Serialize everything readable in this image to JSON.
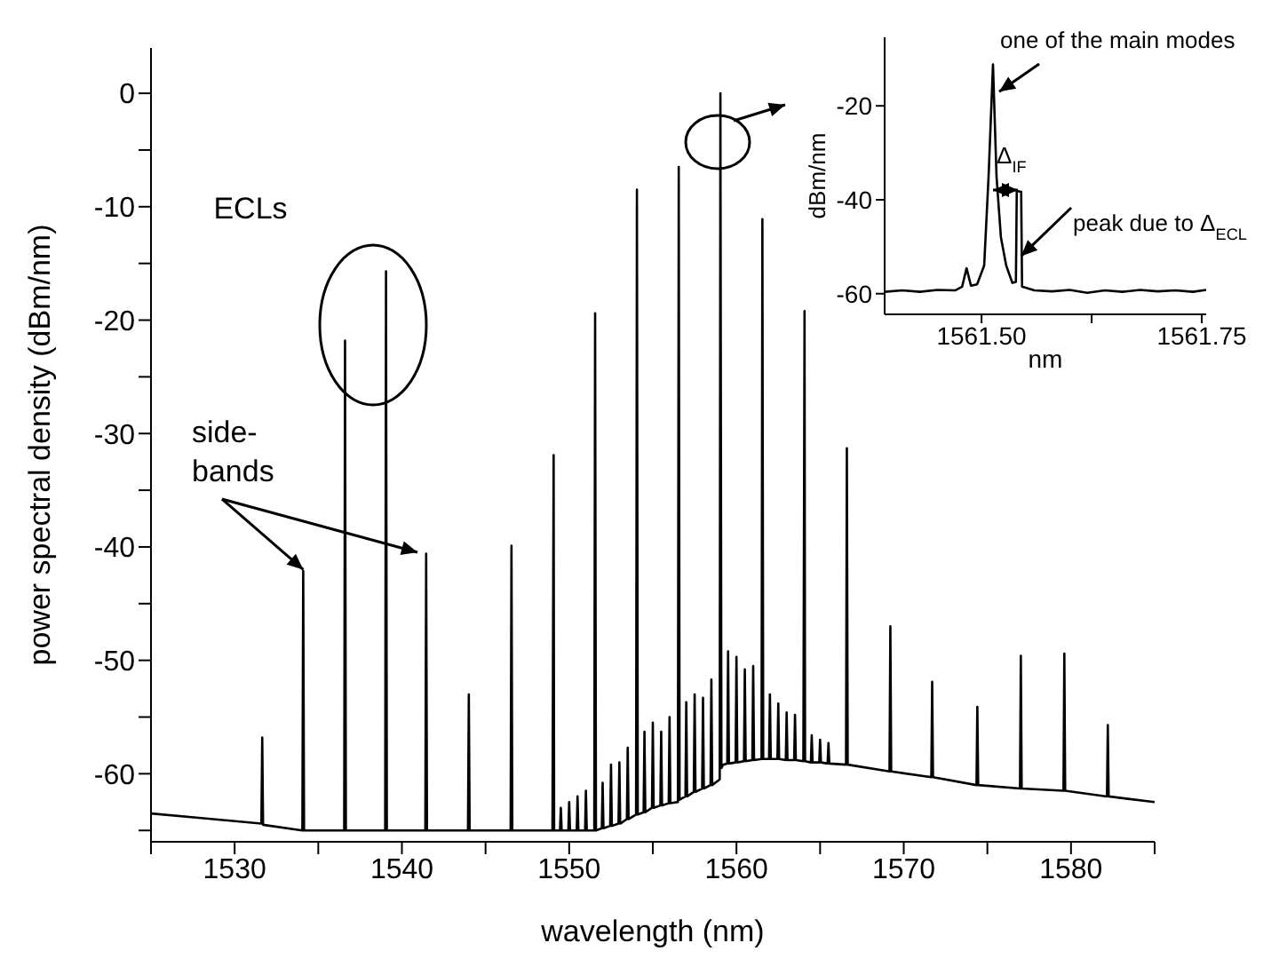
{
  "chart_data": [
    {
      "type": "line",
      "xlabel": "wavelength (nm)",
      "ylabel": "power spectral density (dBm/nm)",
      "xlim": [
        1525,
        1585
      ],
      "xticks": [
        {
          "value": 1525,
          "label": null
        },
        1530,
        {
          "value": 1535,
          "label": null
        },
        1540,
        {
          "value": 1545,
          "label": null
        },
        1550,
        {
          "value": 1555,
          "label": null
        },
        1560,
        {
          "value": 1565,
          "label": null
        },
        1570,
        {
          "value": 1575,
          "label": null
        },
        1580,
        {
          "value": 1585,
          "label": null
        }
      ],
      "ylim": [
        -66,
        4
      ],
      "yticks": [
        {
          "value": -65,
          "label": null
        },
        -60,
        {
          "value": -55,
          "label": null
        },
        -50,
        {
          "value": -45,
          "label": null
        },
        -40,
        {
          "value": -35,
          "label": null
        },
        -30,
        {
          "value": -25,
          "label": null
        },
        -20,
        {
          "value": -15,
          "label": null
        },
        -10,
        {
          "value": -5,
          "label": null
        },
        0
      ],
      "annotations": [
        "ECLs",
        {
          "text": "side-\nbands",
          "x": 1534.1,
          "y": -42
        }
      ],
      "series": [
        {
          "color": "#000000",
          "x": [
            1525,
            1528,
            1531.6,
            1531.65,
            1531.7,
            1534.05,
            1534.1,
            1534.15,
            1536.55,
            1536.6,
            1536.65,
            1539,
            1539.05,
            1539.1,
            1541.4,
            1541.45,
            1541.5,
            1543.95,
            1544,
            1544.05,
            1546.5,
            1546.55,
            1546.6,
            1549.0,
            1549.07,
            1549.1,
            1549.45,
            1549.5,
            1549.55,
            1549.95,
            1550,
            1550.05,
            1550.45,
            1550.5,
            1550.55,
            1550.95,
            1551,
            1551.05,
            1551.5,
            1551.55,
            1551.6,
            1551.95,
            1552,
            1552.05,
            1552.45,
            1552.5,
            1552.55,
            1552.95,
            1553,
            1553.05,
            1553.45,
            1553.5,
            1553.55,
            1554,
            1554.05,
            1554.1,
            1554.45,
            1554.5,
            1554.55,
            1554.95,
            1555,
            1555.05,
            1555.45,
            1555.5,
            1555.55,
            1555.95,
            1556,
            1556.05,
            1556.5,
            1556.55,
            1556.6,
            1556.95,
            1557,
            1557.05,
            1557.45,
            1557.5,
            1557.55,
            1557.95,
            1558,
            1558.05,
            1558.45,
            1558.5,
            1558.55,
            1559,
            1559.04,
            1559.1,
            1559.2,
            1559.45,
            1559.5,
            1559.55,
            1559.95,
            1560,
            1560.05,
            1560.45,
            1560.5,
            1560.55,
            1560.95,
            1561,
            1561.05,
            1561.5,
            1561.55,
            1561.6,
            1561.95,
            1562,
            1562.05,
            1562.45,
            1562.5,
            1562.55,
            1562.95,
            1563,
            1563.05,
            1563.45,
            1563.5,
            1563.55,
            1564,
            1564.07,
            1564.1,
            1564.45,
            1564.5,
            1564.55,
            1564.95,
            1565,
            1565.05,
            1565.45,
            1565.5,
            1565.55,
            1566.55,
            1566.6,
            1566.65,
            1569.15,
            1569.2,
            1569.25,
            1571.65,
            1571.7,
            1571.75,
            1574.35,
            1574.4,
            1574.45,
            1576.95,
            1577,
            1577.05,
            1579.55,
            1579.6,
            1579.65,
            1582.15,
            1582.2,
            1582.25,
            1585
          ],
          "values": [
            -63.5,
            -63.9,
            -64.4,
            -56.8,
            -64.5,
            -65,
            -42.1,
            -65,
            -65,
            -21.8,
            -65,
            -65,
            -15.7,
            -65,
            -65,
            -40.6,
            -65,
            -65,
            -53,
            -65,
            -65,
            -39.9,
            -65,
            -65,
            -31.9,
            -65,
            -65,
            -63,
            -65,
            -65,
            -62.5,
            -65,
            -65,
            -62,
            -65,
            -65,
            -61.5,
            -65,
            -65,
            -19.4,
            -65,
            -64.8,
            -60.8,
            -64.8,
            -64.6,
            -59.2,
            -64.6,
            -64.4,
            -59,
            -64.4,
            -64,
            -57.7,
            -64,
            -63.6,
            -8.5,
            -63.6,
            -63.4,
            -56.3,
            -63.4,
            -63,
            -55.5,
            -63,
            -62.8,
            -56.3,
            -62.8,
            -62.6,
            -55,
            -62.6,
            -62.5,
            -6.5,
            -62.3,
            -62,
            -53.7,
            -62,
            -61.6,
            -53,
            -61.6,
            -61.3,
            -53.3,
            -61.3,
            -61,
            -51.7,
            -61,
            -60.5,
            0,
            -59.5,
            -59.2,
            -59.1,
            -49.2,
            -59.1,
            -59,
            -49.7,
            -59,
            -58.9,
            -50.8,
            -58.9,
            -58.8,
            -50.5,
            -58.8,
            -58.7,
            -11.1,
            -58.7,
            -58.7,
            -53,
            -58.7,
            -58.7,
            -53.8,
            -58.7,
            -58.8,
            -54.6,
            -58.8,
            -58.8,
            -54.8,
            -58.8,
            -58.9,
            -19.2,
            -58.9,
            -59,
            -56.6,
            -59,
            -59,
            -57,
            -59,
            -59.1,
            -57.3,
            -59.1,
            -59.2,
            -31.3,
            -59.2,
            -59.8,
            -47,
            -59.8,
            -60.3,
            -51.9,
            -60.3,
            -61,
            -54.1,
            -61,
            -61.3,
            -49.6,
            -61.3,
            -61.5,
            -49.4,
            -61.5,
            -62,
            -55.7,
            -62,
            -62.5
          ]
        }
      ]
    },
    {
      "type": "line",
      "xlabel": "nm",
      "ylabel": "dBm/nm",
      "xlim": [
        1561.39,
        1561.755
      ],
      "xticks": [
        {
          "value": 1561.5,
          "label": "1561.50"
        },
        {
          "value": 1561.625,
          "label": null
        },
        {
          "value": 1561.75,
          "label": "1561.75"
        }
      ],
      "ylim": [
        -64.4,
        -5.4
      ],
      "yticks": [
        -60,
        -40,
        -20
      ],
      "annotations": [
        {
          "text": "one of the main modes",
          "x": 1561.52,
          "y": -17
        },
        "Δ$_{IF}$",
        {
          "text": "peak due to Δ$_{ECL}$",
          "x": 1561.545,
          "y": -52
        }
      ],
      "series": [
        {
          "color": "#000000",
          "x": [
            1561.39,
            1561.41,
            1561.43,
            1561.45,
            1561.47,
            1561.478,
            1561.483,
            1561.488,
            1561.495,
            1561.503,
            1561.508,
            1561.513,
            1561.517,
            1561.522,
            1561.528,
            1561.535,
            1561.539,
            1561.54,
            1561.545,
            1561.546,
            1561.56,
            1561.58,
            1561.6,
            1561.62,
            1561.64,
            1561.66,
            1561.68,
            1561.7,
            1561.72,
            1561.74,
            1561.755
          ],
          "values": [
            -59.6,
            -59.3,
            -59.6,
            -59.2,
            -59.3,
            -58.5,
            -54.6,
            -58.3,
            -58,
            -54,
            -35,
            -11.2,
            -35,
            -48,
            -54,
            -57.7,
            -57.5,
            -38.1,
            -38.3,
            -58.5,
            -59.3,
            -59.5,
            -59.2,
            -59.8,
            -59.3,
            -59.6,
            -59.2,
            -59.5,
            -59.3,
            -59.6,
            -59.2
          ]
        }
      ]
    }
  ]
}
